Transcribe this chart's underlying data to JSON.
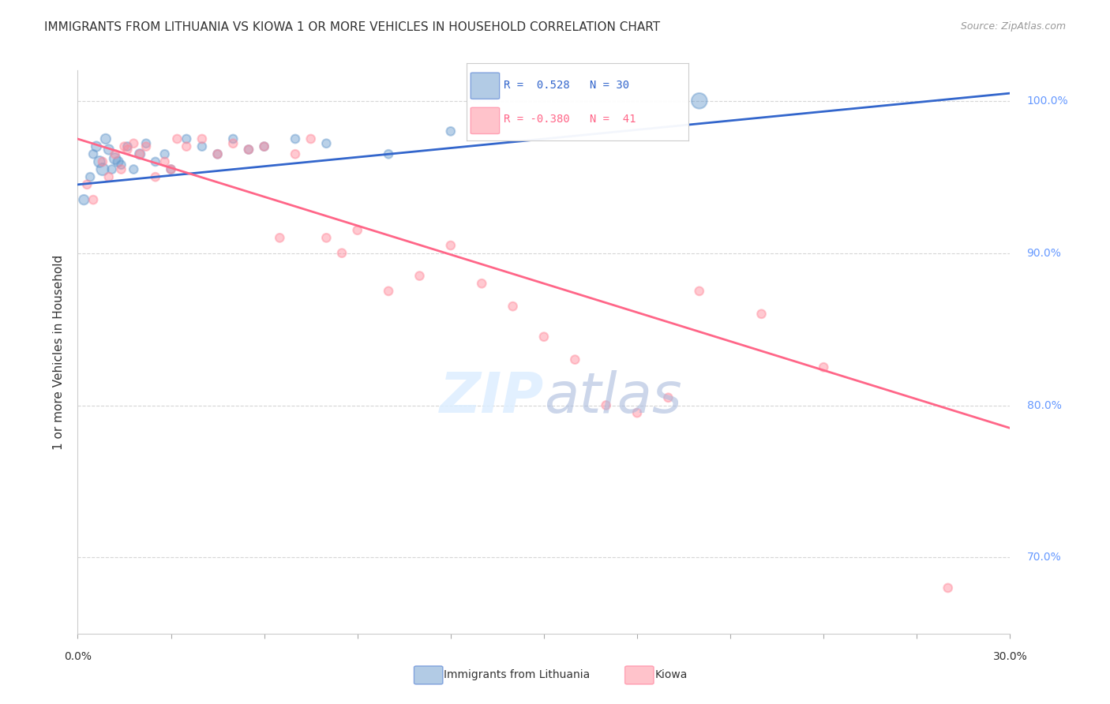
{
  "title": "IMMIGRANTS FROM LITHUANIA VS KIOWA 1 OR MORE VEHICLES IN HOUSEHOLD CORRELATION CHART",
  "source": "Source: ZipAtlas.com",
  "ylabel": "1 or more Vehicles in Household",
  "legend_blue_r": "R =  0.528",
  "legend_blue_n": "N = 30",
  "legend_pink_r": "R = -0.380",
  "legend_pink_n": "N =  41",
  "legend_label_blue": "Immigrants from Lithuania",
  "legend_label_pink": "Kiowa",
  "blue_scatter_x": [
    0.2,
    0.4,
    0.5,
    0.6,
    0.7,
    0.8,
    0.9,
    1.0,
    1.1,
    1.2,
    1.3,
    1.4,
    1.6,
    1.8,
    2.0,
    2.2,
    2.5,
    2.8,
    3.0,
    3.5,
    4.0,
    4.5,
    5.0,
    5.5,
    6.0,
    7.0,
    8.0,
    10.0,
    12.0,
    20.0
  ],
  "blue_scatter_y": [
    93.5,
    95.0,
    96.5,
    97.0,
    96.0,
    95.5,
    97.5,
    96.8,
    95.5,
    96.2,
    96.0,
    95.8,
    97.0,
    95.5,
    96.5,
    97.2,
    96.0,
    96.5,
    95.5,
    97.5,
    97.0,
    96.5,
    97.5,
    96.8,
    97.0,
    97.5,
    97.2,
    96.5,
    98.0,
    100.0
  ],
  "blue_scatter_size": [
    80,
    60,
    60,
    80,
    100,
    120,
    80,
    80,
    60,
    100,
    80,
    60,
    60,
    60,
    80,
    60,
    60,
    60,
    60,
    60,
    60,
    60,
    60,
    60,
    60,
    60,
    60,
    60,
    60,
    200
  ],
  "pink_scatter_x": [
    0.3,
    0.5,
    0.8,
    1.0,
    1.2,
    1.4,
    1.5,
    1.6,
    1.8,
    2.0,
    2.2,
    2.5,
    2.8,
    3.0,
    3.2,
    3.5,
    4.0,
    4.5,
    5.0,
    5.5,
    6.0,
    6.5,
    7.0,
    7.5,
    8.0,
    8.5,
    9.0,
    10.0,
    11.0,
    12.0,
    13.0,
    14.0,
    15.0,
    16.0,
    17.0,
    18.0,
    19.0,
    20.0,
    22.0,
    24.0,
    28.0
  ],
  "pink_scatter_y": [
    94.5,
    93.5,
    96.0,
    95.0,
    96.5,
    95.5,
    97.0,
    96.8,
    97.2,
    96.5,
    97.0,
    95.0,
    96.0,
    95.5,
    97.5,
    97.0,
    97.5,
    96.5,
    97.2,
    96.8,
    97.0,
    91.0,
    96.5,
    97.5,
    91.0,
    90.0,
    91.5,
    87.5,
    88.5,
    90.5,
    88.0,
    86.5,
    84.5,
    83.0,
    80.0,
    79.5,
    80.5,
    87.5,
    86.0,
    82.5,
    68.0
  ],
  "pink_scatter_size": [
    60,
    60,
    60,
    60,
    60,
    60,
    60,
    60,
    60,
    60,
    60,
    60,
    60,
    60,
    60,
    60,
    60,
    60,
    60,
    60,
    60,
    60,
    60,
    60,
    60,
    60,
    60,
    60,
    60,
    60,
    60,
    60,
    60,
    60,
    60,
    60,
    60,
    60,
    60,
    60,
    60
  ],
  "blue_line_x": [
    0.0,
    30.0
  ],
  "blue_line_y": [
    94.5,
    100.5
  ],
  "pink_line_x": [
    0.0,
    30.0
  ],
  "pink_line_y": [
    97.5,
    78.5
  ],
  "xmin": 0.0,
  "xmax": 30.0,
  "ymin": 65.0,
  "ymax": 102.0,
  "background_color": "#ffffff",
  "blue_color": "#6699cc",
  "pink_color": "#ff8899",
  "blue_line_color": "#3366cc",
  "pink_line_color": "#ff6688",
  "grid_color": "#cccccc",
  "title_color": "#333333",
  "axis_label_color": "#333333",
  "right_axis_color": "#6699ff",
  "source_color": "#999999"
}
